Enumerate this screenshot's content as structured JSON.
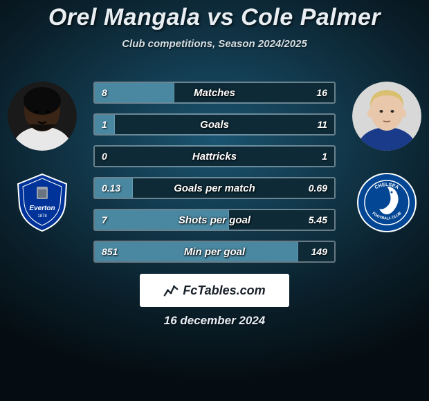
{
  "title": "Orel Mangala vs Cole Palmer",
  "subtitle": "Club competitions, Season 2024/2025",
  "date": "16 december 2024",
  "watermark": "FcTables.com",
  "colors": {
    "left_fill": "#4a88a2",
    "right_fill": "#0d2a36",
    "border": "rgba(255,255,255,0.35)",
    "title": "#e8eef2",
    "subtitle": "#d5dde2"
  },
  "players": {
    "left": {
      "name": "Orel Mangala",
      "club": "Everton",
      "skin": "#3a2416",
      "shirt": "#e8e8e8"
    },
    "right": {
      "name": "Cole Palmer",
      "club": "Chelsea",
      "skin": "#e9c7ab",
      "hair": "#d9c070",
      "shirt": "#1a3a8a"
    }
  },
  "clubs": {
    "left": {
      "name": "Everton",
      "primary": "#003399",
      "secondary": "#ffffff"
    },
    "right": {
      "name": "Chelsea",
      "primary": "#034694",
      "secondary": "#ffffff"
    }
  },
  "bars": [
    {
      "label": "Matches",
      "left_val": "8",
      "right_val": "16",
      "left_pct": 33.3,
      "right_pct": 66.7
    },
    {
      "label": "Goals",
      "left_val": "1",
      "right_val": "11",
      "left_pct": 8.3,
      "right_pct": 91.7
    },
    {
      "label": "Hattricks",
      "left_val": "0",
      "right_val": "1",
      "left_pct": 0,
      "right_pct": 100
    },
    {
      "label": "Goals per match",
      "left_val": "0.13",
      "right_val": "0.69",
      "left_pct": 15.9,
      "right_pct": 84.1
    },
    {
      "label": "Shots per goal",
      "left_val": "7",
      "right_val": "5.45",
      "left_pct": 56.2,
      "right_pct": 43.8
    },
    {
      "label": "Min per goal",
      "left_val": "851",
      "right_val": "149",
      "left_pct": 85.1,
      "right_pct": 14.9
    }
  ]
}
